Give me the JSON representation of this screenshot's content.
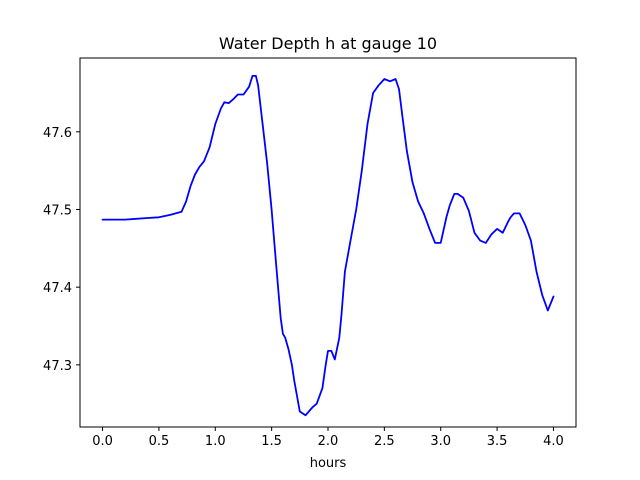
{
  "chart_data": {
    "type": "line",
    "title": "Water Depth h at gauge 10",
    "xlabel": "hours",
    "ylabel": "",
    "xlim": [
      -0.2,
      4.2
    ],
    "ylim": [
      47.22,
      47.695
    ],
    "xticks": [
      0.0,
      0.5,
      1.0,
      1.5,
      2.0,
      2.5,
      3.0,
      3.5,
      4.0
    ],
    "xtick_labels": [
      "0.0",
      "0.5",
      "1.0",
      "1.5",
      "2.0",
      "2.5",
      "3.0",
      "3.5",
      "4.0"
    ],
    "yticks": [
      47.3,
      47.4,
      47.5,
      47.6
    ],
    "ytick_labels": [
      "47.3",
      "47.4",
      "47.5",
      "47.6"
    ],
    "grid": false,
    "legend": "none",
    "series": [
      {
        "color": "#0000ff",
        "x": [
          0.0,
          0.1,
          0.2,
          0.3,
          0.4,
          0.5,
          0.6,
          0.7,
          0.74,
          0.78,
          0.82,
          0.86,
          0.9,
          0.95,
          1.0,
          1.05,
          1.08,
          1.12,
          1.16,
          1.2,
          1.25,
          1.3,
          1.33,
          1.36,
          1.38,
          1.42,
          1.46,
          1.5,
          1.54,
          1.58,
          1.6,
          1.62,
          1.65,
          1.68,
          1.7,
          1.75,
          1.8,
          1.83,
          1.86,
          1.9,
          1.95,
          1.98,
          2.0,
          2.03,
          2.06,
          2.1,
          2.12,
          2.15,
          2.2,
          2.25,
          2.3,
          2.35,
          2.4,
          2.45,
          2.5,
          2.55,
          2.6,
          2.63,
          2.66,
          2.7,
          2.75,
          2.8,
          2.85,
          2.9,
          2.95,
          3.0,
          3.05,
          3.08,
          3.12,
          3.15,
          3.2,
          3.25,
          3.3,
          3.35,
          3.4,
          3.45,
          3.5,
          3.55,
          3.6,
          3.62,
          3.65,
          3.7,
          3.75,
          3.8,
          3.85,
          3.9,
          3.95,
          4.0
        ],
        "y": [
          47.487,
          47.487,
          47.487,
          47.488,
          47.489,
          47.49,
          47.493,
          47.497,
          47.51,
          47.53,
          47.545,
          47.555,
          47.562,
          47.58,
          47.61,
          47.63,
          47.638,
          47.637,
          47.642,
          47.648,
          47.648,
          47.658,
          47.672,
          47.672,
          47.66,
          47.61,
          47.56,
          47.5,
          47.43,
          47.36,
          47.34,
          47.335,
          47.32,
          47.3,
          47.28,
          47.24,
          47.235,
          47.24,
          47.245,
          47.25,
          47.27,
          47.3,
          47.318,
          47.318,
          47.307,
          47.335,
          47.365,
          47.42,
          47.46,
          47.5,
          47.55,
          47.61,
          47.65,
          47.66,
          47.668,
          47.665,
          47.668,
          47.655,
          47.62,
          47.575,
          47.535,
          47.51,
          47.495,
          47.475,
          47.457,
          47.457,
          47.49,
          47.505,
          47.52,
          47.52,
          47.515,
          47.498,
          47.47,
          47.46,
          47.457,
          47.468,
          47.475,
          47.47,
          47.485,
          47.49,
          47.495,
          47.495,
          47.48,
          47.46,
          47.42,
          47.39,
          47.37,
          47.388
        ]
      }
    ]
  }
}
